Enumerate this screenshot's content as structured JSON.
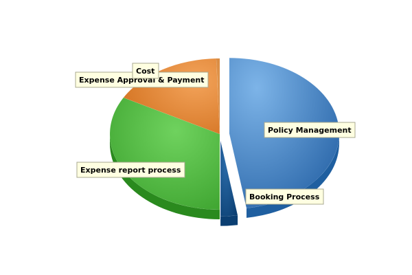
{
  "chart_data": {
    "type": "pie",
    "title": "",
    "legend": "none",
    "labels": [
      "Policy Management",
      "Booking Process",
      "Expense report process",
      "Expense Approval & Payment",
      "Cost"
    ],
    "values": [
      47.5,
      2.5,
      33,
      16.5,
      0.5
    ],
    "exploded": [
      true,
      true,
      false,
      false,
      false
    ],
    "colors": [
      "#3f7fc2",
      "#0d4d8a",
      "#4cb73f",
      "#e8842f",
      "#c9752a"
    ],
    "side_colors": [
      "#1f5fa0",
      "#0b3f72",
      "#2a8a1e",
      "#b35e18",
      "#9c5a1c"
    ]
  }
}
